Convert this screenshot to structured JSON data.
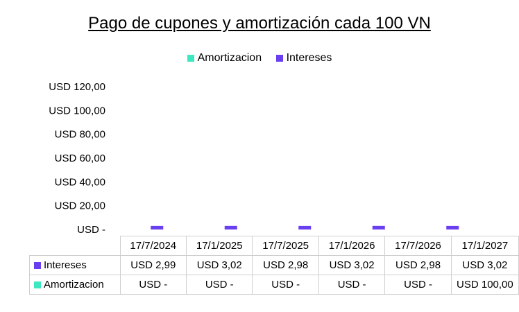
{
  "chart_data": {
    "type": "bar",
    "stacked": true,
    "title": "Pago de cupones y amortización cada 100 VN",
    "categories": [
      "17/7/2024",
      "17/1/2025",
      "17/7/2025",
      "17/1/2026",
      "17/7/2026",
      "17/1/2027"
    ],
    "series": [
      {
        "name": "Amortizacion",
        "color": "#3de8c0",
        "values": [
          0,
          0,
          0,
          0,
          0,
          100
        ],
        "labels": [
          "USD -",
          "USD -",
          "USD -",
          "USD -",
          "USD -",
          "USD 100,00"
        ]
      },
      {
        "name": "Intereses",
        "color": "#6a3ff0",
        "values": [
          2.99,
          3.02,
          2.98,
          3.02,
          2.98,
          3.02
        ],
        "labels": [
          "USD 2,99",
          "USD 3,02",
          "USD 2,98",
          "USD 3,02",
          "USD 2,98",
          "USD 3,02"
        ]
      }
    ],
    "ylim": [
      0,
      120
    ],
    "yticks": [
      0,
      20,
      40,
      60,
      80,
      100,
      120
    ],
    "ytick_labels": [
      "USD -",
      "USD 20,00",
      "USD 40,00",
      "USD 60,00",
      "USD 80,00",
      "USD 100,00",
      "USD 120,00"
    ],
    "legend_position": "top",
    "grid": false,
    "data_table": true
  }
}
